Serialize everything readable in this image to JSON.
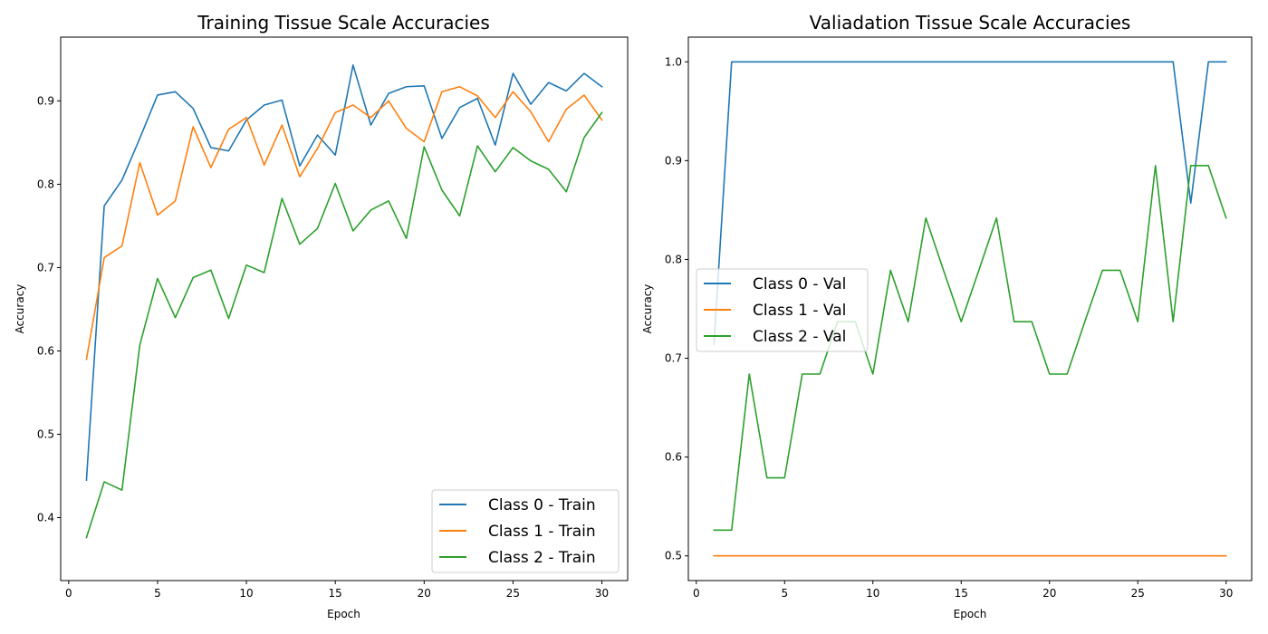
{
  "chart_data": [
    {
      "type": "line",
      "title": "Training Tissue Scale Accuracies",
      "xlabel": "Epoch",
      "ylabel": "Accuracy",
      "xlim": [
        -0.45,
        31.45
      ],
      "ylim": [
        0.3245,
        0.9765
      ],
      "xticks": [
        0,
        5,
        10,
        15,
        20,
        25,
        30
      ],
      "xtick_labels": [
        "0",
        "5",
        "10",
        "15",
        "20",
        "25",
        "30"
      ],
      "yticks": [
        0.4,
        0.5,
        0.6,
        0.7,
        0.8,
        0.9
      ],
      "ytick_labels": [
        "0.4",
        "0.5",
        "0.6",
        "0.7",
        "0.8",
        "0.9"
      ],
      "grid": false,
      "legend_position": "bottom-right",
      "x": [
        1,
        2,
        3,
        4,
        5,
        6,
        7,
        8,
        9,
        10,
        11,
        12,
        13,
        14,
        15,
        16,
        17,
        18,
        19,
        20,
        21,
        22,
        23,
        24,
        25,
        26,
        27,
        28,
        29,
        30
      ],
      "series": [
        {
          "name": "Class 0 - Train",
          "color": "#1f77b4",
          "values": [
            0.445,
            0.774,
            0.805,
            0.855,
            0.907,
            0.911,
            0.891,
            0.844,
            0.84,
            0.877,
            0.895,
            0.901,
            0.822,
            0.859,
            0.835,
            0.943,
            0.871,
            0.909,
            0.917,
            0.918,
            0.855,
            0.892,
            0.903,
            0.847,
            0.933,
            0.896,
            0.922,
            0.912,
            0.933,
            0.917
          ]
        },
        {
          "name": "Class 1 - Train",
          "color": "#ff7f0e",
          "values": [
            0.59,
            0.712,
            0.726,
            0.826,
            0.763,
            0.78,
            0.869,
            0.82,
            0.866,
            0.88,
            0.823,
            0.871,
            0.809,
            0.843,
            0.886,
            0.895,
            0.88,
            0.9,
            0.867,
            0.851,
            0.911,
            0.917,
            0.906,
            0.88,
            0.911,
            0.887,
            0.851,
            0.89,
            0.907,
            0.877
          ]
        },
        {
          "name": "Class 2 - Train",
          "color": "#2ca02c",
          "values": [
            0.376,
            0.443,
            0.433,
            0.607,
            0.687,
            0.64,
            0.688,
            0.697,
            0.639,
            0.703,
            0.694,
            0.783,
            0.728,
            0.747,
            0.801,
            0.744,
            0.769,
            0.78,
            0.735,
            0.845,
            0.793,
            0.762,
            0.846,
            0.815,
            0.844,
            0.828,
            0.818,
            0.791,
            0.856,
            0.886
          ]
        }
      ]
    },
    {
      "type": "line",
      "title": "Valiadation Tissue Scale Accuracies",
      "xlabel": "Epoch",
      "ylabel": "Accuracy",
      "xlim": [
        -0.45,
        31.45
      ],
      "ylim": [
        0.475,
        1.025
      ],
      "xticks": [
        0,
        5,
        10,
        15,
        20,
        25,
        30
      ],
      "xtick_labels": [
        "0",
        "5",
        "10",
        "15",
        "20",
        "25",
        "30"
      ],
      "yticks": [
        0.5,
        0.6,
        0.7,
        0.8,
        0.9,
        1.0
      ],
      "ytick_labels": [
        "0.5",
        "0.6",
        "0.7",
        "0.8",
        "0.9",
        "1.0"
      ],
      "grid": false,
      "legend_position": "center-left",
      "x": [
        1,
        2,
        3,
        4,
        5,
        6,
        7,
        8,
        9,
        10,
        11,
        12,
        13,
        14,
        15,
        16,
        17,
        18,
        19,
        20,
        21,
        22,
        23,
        24,
        25,
        26,
        27,
        28,
        29,
        30
      ],
      "series": [
        {
          "name": "Class 0 - Val",
          "color": "#1f77b4",
          "values": [
            0.714,
            1.0,
            1.0,
            1.0,
            1.0,
            1.0,
            1.0,
            1.0,
            1.0,
            1.0,
            1.0,
            1.0,
            1.0,
            1.0,
            1.0,
            1.0,
            1.0,
            1.0,
            1.0,
            1.0,
            1.0,
            1.0,
            1.0,
            1.0,
            1.0,
            1.0,
            1.0,
            0.857,
            1.0,
            1.0
          ]
        },
        {
          "name": "Class 1 - Val",
          "color": "#ff7f0e",
          "values": [
            0.5,
            0.5,
            0.5,
            0.5,
            0.5,
            0.5,
            0.5,
            0.5,
            0.5,
            0.5,
            0.5,
            0.5,
            0.5,
            0.5,
            0.5,
            0.5,
            0.5,
            0.5,
            0.5,
            0.5,
            0.5,
            0.5,
            0.5,
            0.5,
            0.5,
            0.5,
            0.5,
            0.5,
            0.5,
            0.5
          ]
        },
        {
          "name": "Class 2 - Val",
          "color": "#2ca02c",
          "values": [
            0.526,
            0.526,
            0.684,
            0.579,
            0.579,
            0.684,
            0.684,
            0.737,
            0.737,
            0.684,
            0.789,
            0.737,
            0.842,
            0.789,
            0.737,
            0.789,
            0.842,
            0.737,
            0.737,
            0.684,
            0.684,
            0.737,
            0.789,
            0.789,
            0.737,
            0.895,
            0.737,
            0.895,
            0.895,
            0.842
          ]
        }
      ]
    }
  ]
}
